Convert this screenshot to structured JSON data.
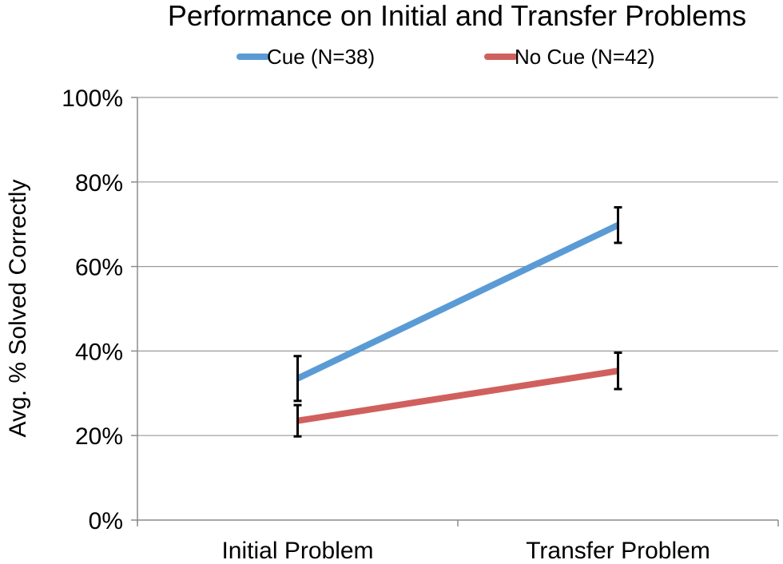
{
  "chart_data": {
    "type": "line",
    "title": "Performance on Initial and Transfer Problems",
    "xlabel": "",
    "ylabel": "Avg. % Solved Correctly",
    "categories": [
      "Initial Problem",
      "Transfer Problem"
    ],
    "ylim": [
      0,
      100
    ],
    "yticks": [
      "0%",
      "20%",
      "40%",
      "60%",
      "80%",
      "100%"
    ],
    "ytick_values": [
      0,
      20,
      40,
      60,
      80,
      100
    ],
    "grid": true,
    "legend_position": "top",
    "series": [
      {
        "name": "Cue (N=38)",
        "color": "#5b9bd5",
        "values": [
          33.5,
          69.8
        ],
        "error_low": [
          28.2,
          65.6
        ],
        "error_high": [
          38.8,
          74.0
        ]
      },
      {
        "name": "No Cue (N=42)",
        "color": "#d0605e",
        "values": [
          23.5,
          35.3
        ],
        "error_low": [
          19.8,
          31.0
        ],
        "error_high": [
          27.2,
          39.6
        ]
      }
    ]
  }
}
